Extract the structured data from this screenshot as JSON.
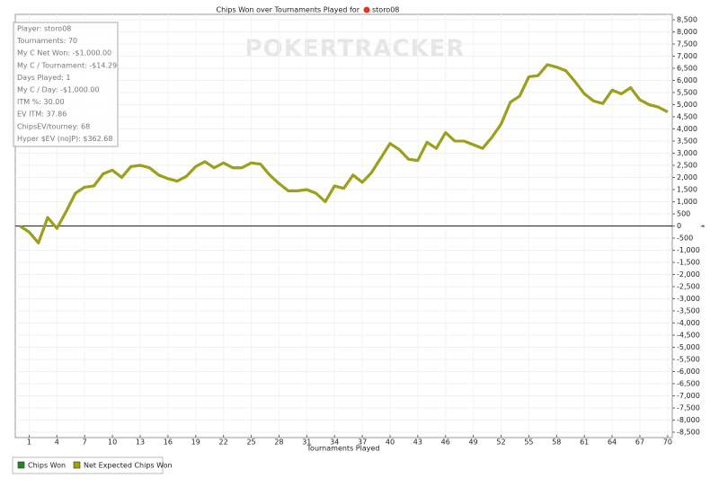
{
  "chart_data": {
    "type": "line",
    "title": "Chips Won over Tournaments Played for",
    "player": "storo08",
    "watermark": "POKERTRACKER",
    "x_label": "Tournaments Played",
    "stats": [
      "Player: storo08",
      "Tournaments: 70",
      "My C Net Won: -$1,000.00",
      "My C / Tournament: -$14.29",
      "Days Played: 1",
      "My C / Day: -$1,000.00",
      "ITM %: 30.00",
      "EV ITM: 37.86",
      "ChipsEV/tourney: 68",
      "Hyper $EV (noJP): $362.68"
    ],
    "x": [
      0,
      1,
      2,
      3,
      4,
      5,
      6,
      7,
      8,
      9,
      10,
      11,
      12,
      13,
      14,
      15,
      16,
      17,
      18,
      19,
      20,
      21,
      22,
      23,
      24,
      25,
      26,
      27,
      28,
      29,
      30,
      31,
      32,
      33,
      34,
      35,
      36,
      37,
      38,
      39,
      40,
      41,
      42,
      43,
      44,
      45,
      46,
      47,
      48,
      49,
      50,
      51,
      52,
      53,
      54,
      55,
      56,
      57,
      58,
      59,
      60,
      61,
      62,
      63,
      64,
      65,
      66,
      67,
      68,
      69,
      70
    ],
    "series": [
      {
        "name": "Chips Won",
        "color": "#2e7d2e",
        "values": [
          0,
          -250,
          -700,
          350,
          -100,
          600,
          1350,
          1600,
          1650,
          2150,
          2300,
          2000,
          2450,
          2500,
          2400,
          2100,
          1950,
          1850,
          2050,
          2450,
          2650,
          2400,
          2600,
          2400,
          2400,
          2600,
          2550,
          2100,
          1750,
          1450,
          1450,
          1500,
          1350,
          1000,
          1650,
          1550,
          2100,
          1800,
          2200,
          2800,
          3400,
          3150,
          2750,
          2700,
          3450,
          3200,
          3850,
          3500,
          3500,
          3350,
          3200,
          3650,
          4200,
          5100,
          5350,
          6150,
          6200,
          6650,
          6550,
          6400,
          5950,
          5450,
          5150,
          5050,
          5600,
          5450,
          5700,
          5200,
          5000,
          4900,
          4700
        ]
      },
      {
        "name": "Net Expected Chips Won",
        "color": "#a0a018",
        "values": [
          0,
          -250,
          -700,
          350,
          -100,
          600,
          1350,
          1600,
          1650,
          2150,
          2300,
          2000,
          2450,
          2500,
          2400,
          2100,
          1950,
          1850,
          2050,
          2450,
          2650,
          2400,
          2600,
          2400,
          2400,
          2600,
          2550,
          2100,
          1750,
          1450,
          1450,
          1500,
          1350,
          1000,
          1650,
          1550,
          2100,
          1800,
          2200,
          2800,
          3400,
          3150,
          2750,
          2700,
          3450,
          3200,
          3850,
          3500,
          3500,
          3350,
          3200,
          3650,
          4200,
          5100,
          5350,
          6150,
          6200,
          6650,
          6550,
          6400,
          5950,
          5450,
          5150,
          5050,
          5600,
          5450,
          5700,
          5200,
          5000,
          4900,
          4700
        ]
      }
    ],
    "xlim": [
      -0.5,
      70.5
    ],
    "xticks": [
      1,
      4,
      7,
      10,
      13,
      16,
      19,
      22,
      25,
      28,
      31,
      34,
      37,
      40,
      43,
      46,
      49,
      52,
      55,
      58,
      61,
      64,
      67,
      70
    ],
    "ylim": [
      -8500,
      8500
    ],
    "yticks": [
      {
        "value": 8500,
        "label": "8,500"
      },
      {
        "value": 8000,
        "label": "8,000"
      },
      {
        "value": 7500,
        "label": "7,500"
      },
      {
        "value": 7000,
        "label": "7,000"
      },
      {
        "value": 6500,
        "label": "6,500"
      },
      {
        "value": 6000,
        "label": "6,000"
      },
      {
        "value": 5500,
        "label": "5,500"
      },
      {
        "value": 5000,
        "label": "5,000"
      },
      {
        "value": 4500,
        "label": "4,500"
      },
      {
        "value": 4000,
        "label": "4,000"
      },
      {
        "value": 3500,
        "label": "3,500"
      },
      {
        "value": 3000,
        "label": "3,000"
      },
      {
        "value": 2500,
        "label": "2,500"
      },
      {
        "value": 2000,
        "label": "2,000"
      },
      {
        "value": 1500,
        "label": "1,500"
      },
      {
        "value": 1000,
        "label": "1,000"
      },
      500,
      0,
      -500,
      {
        "value": -1000,
        "label": "-1,000"
      },
      {
        "value": -1500,
        "label": "-1,500"
      },
      {
        "value": -2000,
        "label": "-2,000"
      },
      {
        "value": -2500,
        "label": "-2,500"
      },
      {
        "value": -3000,
        "label": "-3,000"
      },
      {
        "value": -3500,
        "label": "-3,500"
      },
      {
        "value": -4000,
        "label": "-4,000"
      },
      {
        "value": -4500,
        "label": "-4,500"
      },
      {
        "value": -5000,
        "label": "-5,000"
      },
      {
        "value": -5500,
        "label": "-5,500"
      },
      {
        "value": -6000,
        "label": "-6,000"
      },
      {
        "value": -6500,
        "label": "-6,500"
      },
      {
        "value": -7000,
        "label": "-7,000"
      },
      {
        "value": -7500,
        "label": "-7,500"
      },
      {
        "value": -8000,
        "label": "-8,000"
      },
      {
        "value": -8500,
        "label": "-8,500"
      }
    ],
    "grid": true
  }
}
